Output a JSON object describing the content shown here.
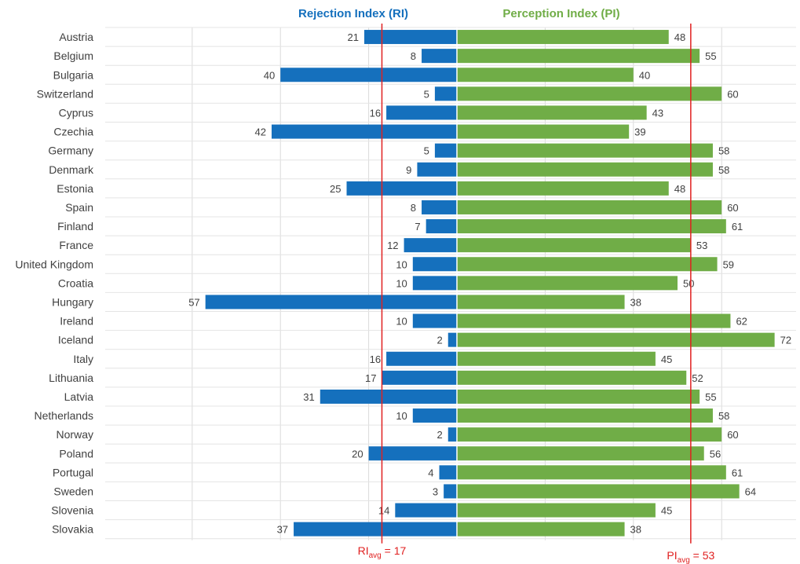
{
  "chart_data": {
    "type": "bar",
    "orientation": "horizontal-diverging",
    "title": "",
    "categories": [
      "Austria",
      "Belgium",
      "Bulgaria",
      "Switzerland",
      "Cyprus",
      "Czechia",
      "Germany",
      "Denmark",
      "Estonia",
      "Spain",
      "Finland",
      "France",
      "United Kingdom",
      "Croatia",
      "Hungary",
      "Ireland",
      "Iceland",
      "Italy",
      "Lithuania",
      "Latvia",
      "Netherlands",
      "Norway",
      "Poland",
      "Portugal",
      "Sweden",
      "Slovenia",
      "Slovakia"
    ],
    "series": [
      {
        "name": "Rejection Index (RI)",
        "color": "#1570bd",
        "direction": "left",
        "values": [
          21,
          8,
          40,
          5,
          16,
          42,
          5,
          9,
          25,
          8,
          7,
          12,
          10,
          10,
          57,
          10,
          2,
          16,
          17,
          31,
          10,
          2,
          20,
          4,
          3,
          14,
          37
        ]
      },
      {
        "name": "Perception Index (PI)",
        "color": "#70ad47",
        "direction": "right",
        "values": [
          48,
          55,
          40,
          60,
          43,
          39,
          58,
          58,
          48,
          60,
          61,
          53,
          59,
          50,
          38,
          62,
          72,
          45,
          52,
          55,
          58,
          60,
          56,
          61,
          64,
          45,
          38
        ]
      }
    ],
    "reference_lines": [
      {
        "series": "Rejection Index (RI)",
        "value": 17,
        "label_main": "RI",
        "label_sub": "avg",
        "label_tail": " = 17",
        "color": "#e02020"
      },
      {
        "series": "Perception Index (PI)",
        "value": 53,
        "label_main": "PI",
        "label_sub": "avg",
        "label_tail": " = 53",
        "color": "#e02020"
      }
    ],
    "grid": true,
    "legend": "top-center headers"
  }
}
